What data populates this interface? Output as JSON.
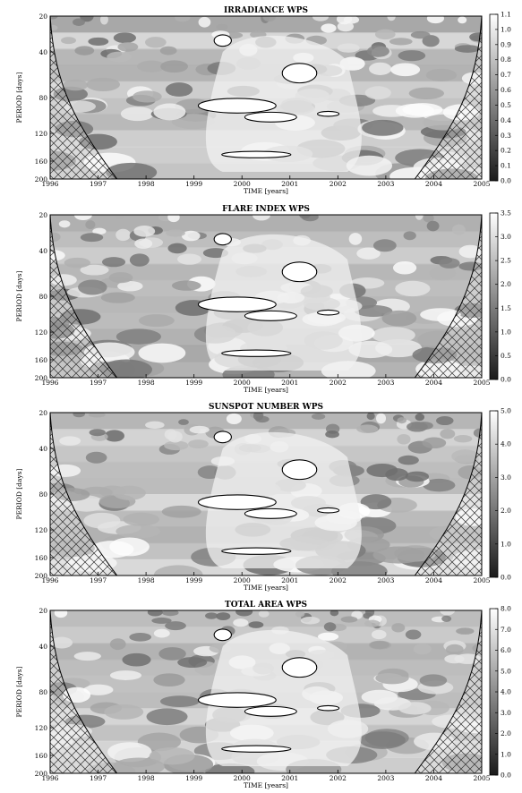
{
  "chart_data": [
    {
      "type": "heatmap",
      "title": "IRRADIANCE WPS",
      "xlabel": "TIME [years]",
      "ylabel": "PERIOD [days]",
      "x_ticks": [
        "1996",
        "1997",
        "1998",
        "1999",
        "2000",
        "2001",
        "2002",
        "2003",
        "2004",
        "2005"
      ],
      "y_ticks": [
        "20",
        "40",
        "80",
        "120",
        "160",
        "200"
      ],
      "colorbar_ticks": [
        "0.0",
        "0.1",
        "0.2",
        "0.3",
        "0.4",
        "0.5",
        "0.6",
        "0.7",
        "0.8",
        "0.9",
        "1.0",
        "1.1"
      ],
      "colorbar_range": [
        0.0,
        1.1
      ],
      "xlim": [
        1996,
        2005
      ],
      "ylim": [
        20,
        200
      ],
      "colors": {
        "low": "#1a1a1a",
        "high": "#ffffff"
      }
    },
    {
      "type": "heatmap",
      "title": "FLARE INDEX WPS",
      "xlabel": "TIME [years]",
      "ylabel": "PERIOD [days]",
      "x_ticks": [
        "1996",
        "1997",
        "1998",
        "1999",
        "2000",
        "2001",
        "2002",
        "2003",
        "2004",
        "2005"
      ],
      "y_ticks": [
        "20",
        "40",
        "80",
        "120",
        "160",
        "200"
      ],
      "colorbar_ticks": [
        "0.0",
        "0.5",
        "1.0",
        "1.5",
        "2.0",
        "2.5",
        "3.0",
        "3.5"
      ],
      "colorbar_range": [
        0.0,
        3.5
      ],
      "xlim": [
        1996,
        2005
      ],
      "ylim": [
        20,
        200
      ],
      "colors": {
        "low": "#1a1a1a",
        "high": "#ffffff"
      }
    },
    {
      "type": "heatmap",
      "title": "SUNSPOT NUMBER WPS",
      "xlabel": "TIME [years]",
      "ylabel": "PERIOD [days]",
      "x_ticks": [
        "1996",
        "1997",
        "1998",
        "1999",
        "2000",
        "2001",
        "2002",
        "2003",
        "2004",
        "2005"
      ],
      "y_ticks": [
        "20",
        "40",
        "80",
        "120",
        "160",
        "200"
      ],
      "colorbar_ticks": [
        "0.0",
        "1.0",
        "2.0",
        "3.0",
        "4.0",
        "5.0"
      ],
      "colorbar_range": [
        0.0,
        5.0
      ],
      "xlim": [
        1996,
        2005
      ],
      "ylim": [
        20,
        200
      ],
      "colors": {
        "low": "#1a1a1a",
        "high": "#ffffff"
      }
    },
    {
      "type": "heatmap",
      "title": "TOTAL AREA WPS",
      "xlabel": "TIME [years]",
      "ylabel": "PERIOD [days]",
      "x_ticks": [
        "1996",
        "1997",
        "1998",
        "1999",
        "2000",
        "2001",
        "2002",
        "2003",
        "2004",
        "2005"
      ],
      "y_ticks": [
        "20",
        "40",
        "80",
        "120",
        "160",
        "200"
      ],
      "colorbar_ticks": [
        "0.0",
        "1.0",
        "2.0",
        "3.0",
        "4.0",
        "5.0",
        "6.0",
        "7.0",
        "8.0"
      ],
      "colorbar_range": [
        0.0,
        8.0
      ],
      "xlim": [
        1996,
        2005
      ],
      "ylim": [
        20,
        200
      ],
      "colors": {
        "low": "#1a1a1a",
        "high": "#ffffff"
      }
    }
  ]
}
